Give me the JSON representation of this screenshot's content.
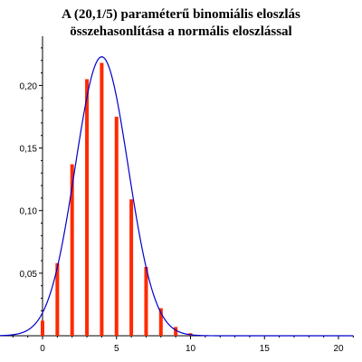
{
  "chart_data": {
    "type": "bar",
    "title_lines": [
      "A (20,1/5) paraméterű binomiális eloszlás",
      "összehasonlítása a normális eloszlással"
    ],
    "xlabel": "",
    "ylabel": "",
    "xlim": [
      -3,
      21
    ],
    "ylim": [
      0,
      0.235
    ],
    "x_ticks": [
      0,
      5,
      10,
      15,
      20
    ],
    "x_tick_labels": [
      "0",
      "5",
      "10",
      "15",
      "20"
    ],
    "y_ticks": [
      0.05,
      0.1,
      0.15,
      0.2
    ],
    "y_tick_labels": [
      "0,05",
      "0,10",
      "0,15",
      "0,20"
    ],
    "grid": false,
    "series": [
      {
        "type": "bar",
        "x": [
          0,
          1,
          2,
          3,
          4,
          5,
          6,
          7,
          8,
          9,
          10,
          11,
          12,
          13,
          14,
          15,
          16,
          17,
          18,
          19,
          20
        ],
        "values": [
          0.012,
          0.058,
          0.137,
          0.205,
          0.218,
          0.175,
          0.109,
          0.055,
          0.022,
          0.007,
          0.002,
          0.0,
          0.0,
          0.0,
          0.0,
          0.0,
          0.0,
          0.0,
          0.0,
          0.0,
          0.0
        ],
        "color": "#ff2a00"
      },
      {
        "type": "line",
        "curve": "normal-density",
        "mean": 4,
        "sd": 1.79,
        "x_range": [
          -3,
          21
        ],
        "color": "#0000cc"
      }
    ]
  }
}
